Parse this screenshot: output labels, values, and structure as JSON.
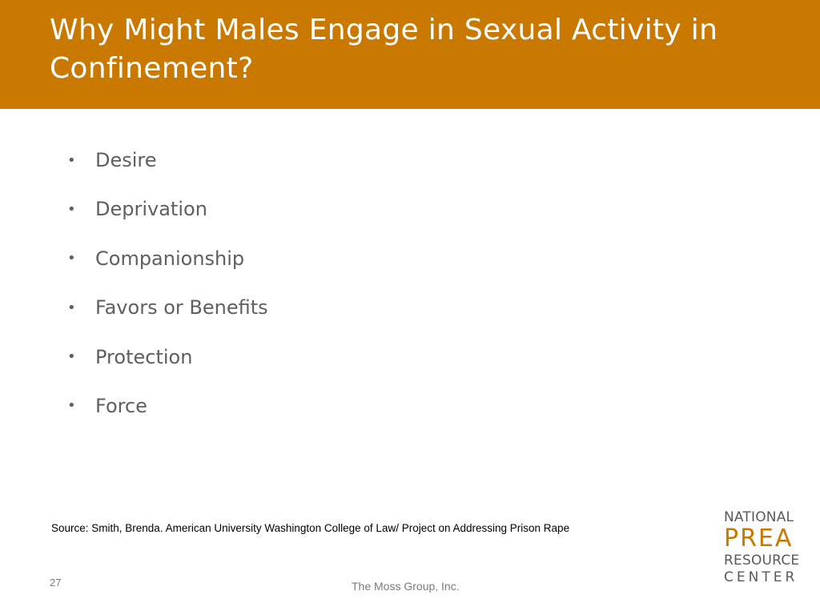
{
  "slide": {
    "title": "Why Might Males Engage in Sexual Activity in Confinement?",
    "bullet_char": "•",
    "bullets": [
      "Desire",
      "Deprivation",
      "Companionship",
      "Favors or Benefits",
      "Protection",
      "Force"
    ],
    "source": "Source: Smith, Brenda. American University Washington College of Law/ Project on Addressing Prison Rape",
    "page_number": "27",
    "footer": "The Moss Group, Inc.",
    "logo": {
      "line1": "NATIONAL",
      "line2": "PREA",
      "line3": "RESOURCE",
      "line4": "CENTER"
    }
  },
  "colors": {
    "accent": "#c97800",
    "body_text": "#5f5f5f"
  }
}
